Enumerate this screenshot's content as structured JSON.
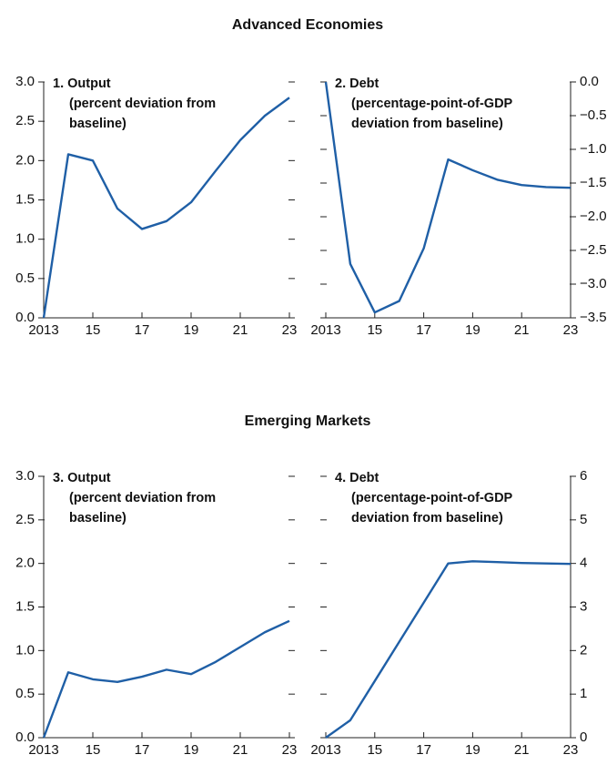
{
  "headings": [
    "Advanced Economies",
    "Emerging Markets"
  ],
  "chart_data": [
    {
      "type": "line",
      "title": "1. Output",
      "subtitle": [
        "(percent deviation from",
        "baseline)"
      ],
      "x": [
        2013,
        2014,
        2015,
        2016,
        2017,
        2018,
        2019,
        2020,
        2021,
        2022,
        2023
      ],
      "values": [
        0,
        2.08,
        2.0,
        1.39,
        1.13,
        1.23,
        1.47,
        1.87,
        2.26,
        2.57,
        2.8
      ],
      "color": "#1f5fa6",
      "yaxis_side": "left",
      "xlim": [
        2013,
        2023
      ],
      "xticks": [
        2013,
        {
          "value": 2015,
          "label": "15"
        },
        {
          "value": 2017,
          "label": "17"
        },
        {
          "value": 2019,
          "label": "19"
        },
        {
          "value": 2021,
          "label": "21"
        },
        {
          "value": 2023,
          "label": "23"
        }
      ],
      "ylim": [
        0,
        3
      ],
      "yticks": [
        {
          "value": 0,
          "label": "0.0"
        },
        0.5,
        {
          "value": 1,
          "label": "1.0"
        },
        1.5,
        {
          "value": 2,
          "label": "2.0"
        },
        2.5,
        {
          "value": 3,
          "label": "3.0"
        }
      ]
    },
    {
      "type": "line",
      "title": "2. Debt",
      "subtitle": [
        "(percentage-point-of-GDP",
        "deviation from baseline)"
      ],
      "x": [
        2013,
        2014,
        2015,
        2016,
        2017,
        2018,
        2019,
        2020,
        2021,
        2022,
        2023
      ],
      "values": [
        0,
        -2.7,
        -3.42,
        -3.25,
        -2.47,
        -1.15,
        -1.31,
        -1.45,
        -1.53,
        -1.56,
        -1.57
      ],
      "color": "#1f5fa6",
      "yaxis_side": "right",
      "xlim": [
        2013,
        2023
      ],
      "xticks": [
        2013,
        {
          "value": 2015,
          "label": "15"
        },
        {
          "value": 2017,
          "label": "17"
        },
        {
          "value": 2019,
          "label": "19"
        },
        {
          "value": 2021,
          "label": "21"
        },
        {
          "value": 2023,
          "label": "23"
        }
      ],
      "ylim": [
        -3.5,
        0
      ],
      "yticks": [
        {
          "value": -3.5,
          "label": "−3.5"
        },
        {
          "value": -3,
          "label": "−3.0"
        },
        {
          "value": -2.5,
          "label": "−2.5"
        },
        {
          "value": -2,
          "label": "−2.0"
        },
        {
          "value": -1.5,
          "label": "−1.5"
        },
        {
          "value": -1,
          "label": "−1.0"
        },
        {
          "value": -0.5,
          "label": "−0.5"
        },
        {
          "value": 0,
          "label": "0.0"
        }
      ]
    },
    {
      "type": "line",
      "title": "3. Output",
      "subtitle": [
        "(percent deviation from",
        "baseline)"
      ],
      "x": [
        2013,
        2014,
        2015,
        2016,
        2017,
        2018,
        2019,
        2020,
        2021,
        2022,
        2023
      ],
      "values": [
        0,
        0.75,
        0.67,
        0.64,
        0.7,
        0.78,
        0.73,
        0.87,
        1.04,
        1.21,
        1.34
      ],
      "color": "#1f5fa6",
      "yaxis_side": "left",
      "xlim": [
        2013,
        2023
      ],
      "xticks": [
        2013,
        {
          "value": 2015,
          "label": "15"
        },
        {
          "value": 2017,
          "label": "17"
        },
        {
          "value": 2019,
          "label": "19"
        },
        {
          "value": 2021,
          "label": "21"
        },
        {
          "value": 2023,
          "label": "23"
        }
      ],
      "ylim": [
        0,
        3
      ],
      "yticks": [
        {
          "value": 0,
          "label": "0.0"
        },
        0.5,
        {
          "value": 1,
          "label": "1.0"
        },
        1.5,
        {
          "value": 2,
          "label": "2.0"
        },
        2.5,
        {
          "value": 3,
          "label": "3.0"
        }
      ]
    },
    {
      "type": "line",
      "title": "4. Debt",
      "subtitle": [
        "(percentage-point-of-GDP",
        "deviation from baseline)"
      ],
      "x": [
        2013,
        2014,
        2015,
        2016,
        2017,
        2018,
        2019,
        2020,
        2021,
        2022,
        2023
      ],
      "values": [
        0,
        0.4,
        1.3,
        2.2,
        3.1,
        4.0,
        4.05,
        4.03,
        4.01,
        4.0,
        3.99
      ],
      "color": "#1f5fa6",
      "yaxis_side": "right",
      "xlim": [
        2013,
        2023
      ],
      "xticks": [
        2013,
        {
          "value": 2015,
          "label": "15"
        },
        {
          "value": 2017,
          "label": "17"
        },
        {
          "value": 2019,
          "label": "19"
        },
        {
          "value": 2021,
          "label": "21"
        },
        {
          "value": 2023,
          "label": "23"
        }
      ],
      "ylim": [
        0,
        6
      ],
      "yticks": [
        0,
        1,
        2,
        3,
        4,
        5,
        6
      ]
    }
  ]
}
